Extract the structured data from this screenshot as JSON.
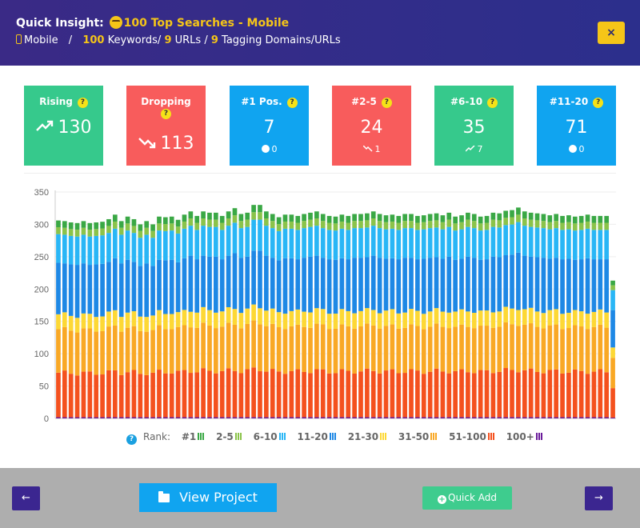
{
  "header": {
    "title_prefix": "Quick Insight:",
    "title_text": "100 Top Searches - Mobile",
    "device": "Mobile",
    "sep": "/",
    "keywords_count": "100",
    "keywords_label": "Keywords/",
    "urls_count": "9",
    "urls_label": "URLs /",
    "domains_count": "9",
    "domains_label": "Tagging Domains/URLs",
    "close_label": "×"
  },
  "cards": [
    {
      "label": "Rising",
      "value": "130",
      "icon": "trend-up-icon",
      "color": "#36c98c"
    },
    {
      "label": "Dropping",
      "value": "113",
      "icon": "trend-down-icon",
      "color": "#f85c5c"
    },
    {
      "label": "#1 Pos.",
      "value": "7",
      "sub": "0",
      "color": "#10a4f0"
    },
    {
      "label": "#2-5",
      "value": "24",
      "sub": "1",
      "color": "#f85c5c"
    },
    {
      "label": "#6-10",
      "value": "35",
      "sub": "7",
      "color": "#36c98c"
    },
    {
      "label": "#11-20",
      "value": "71",
      "sub": "0",
      "color": "#10a4f0"
    }
  ],
  "qmark": "?",
  "legend": {
    "title": "Rank:",
    "items": [
      {
        "label": "#1",
        "color": "#3aa845"
      },
      {
        "label": "2-5",
        "color": "#8bc34a"
      },
      {
        "label": "6-10",
        "color": "#29b6f6"
      },
      {
        "label": "11-20",
        "color": "#1e88e5"
      },
      {
        "label": "21-30",
        "color": "#fdd835"
      },
      {
        "label": "31-50",
        "color": "#f9a825"
      },
      {
        "label": "51-100",
        "color": "#f4511e"
      },
      {
        "label": "100+",
        "color": "#6a1b9a"
      }
    ]
  },
  "chart_data": {
    "type": "bar",
    "stacked": true,
    "ylim": [
      0,
      350
    ],
    "yticks": [
      0,
      50,
      100,
      150,
      200,
      250,
      300,
      350
    ],
    "grid": true,
    "series_colors": [
      "#6a1b9a",
      "#f4511e",
      "#f9a825",
      "#fdd835",
      "#1e88e5",
      "#29b6f6",
      "#8bc34a",
      "#3aa845"
    ],
    "series_keys": [
      "100+",
      "51-100",
      "31-50",
      "21-30",
      "11-20",
      "6-10",
      "2-5",
      "#1"
    ],
    "totals": [
      306,
      305,
      303,
      302,
      305,
      302,
      303,
      304,
      308,
      315,
      305,
      312,
      308,
      300,
      305,
      300,
      312,
      311,
      312,
      307,
      315,
      320,
      313,
      320,
      318,
      318,
      313,
      320,
      325,
      316,
      318,
      330,
      330,
      320,
      316,
      311,
      315,
      315,
      313,
      316,
      318,
      320,
      316,
      313,
      312,
      315,
      313,
      316,
      316,
      317,
      320,
      316,
      314,
      315,
      313,
      316,
      316,
      313,
      314,
      316,
      317,
      314,
      318,
      312,
      314,
      318,
      316,
      312,
      313,
      318,
      317,
      321,
      322,
      326,
      320,
      318,
      317,
      316,
      314,
      316,
      313,
      314,
      312,
      313,
      315,
      313,
      313,
      313,
      213
    ]
  },
  "footer": {
    "prev_label": "←",
    "next_label": "→",
    "view_project_label": "View Project",
    "quick_add_label": "Quick Add"
  }
}
